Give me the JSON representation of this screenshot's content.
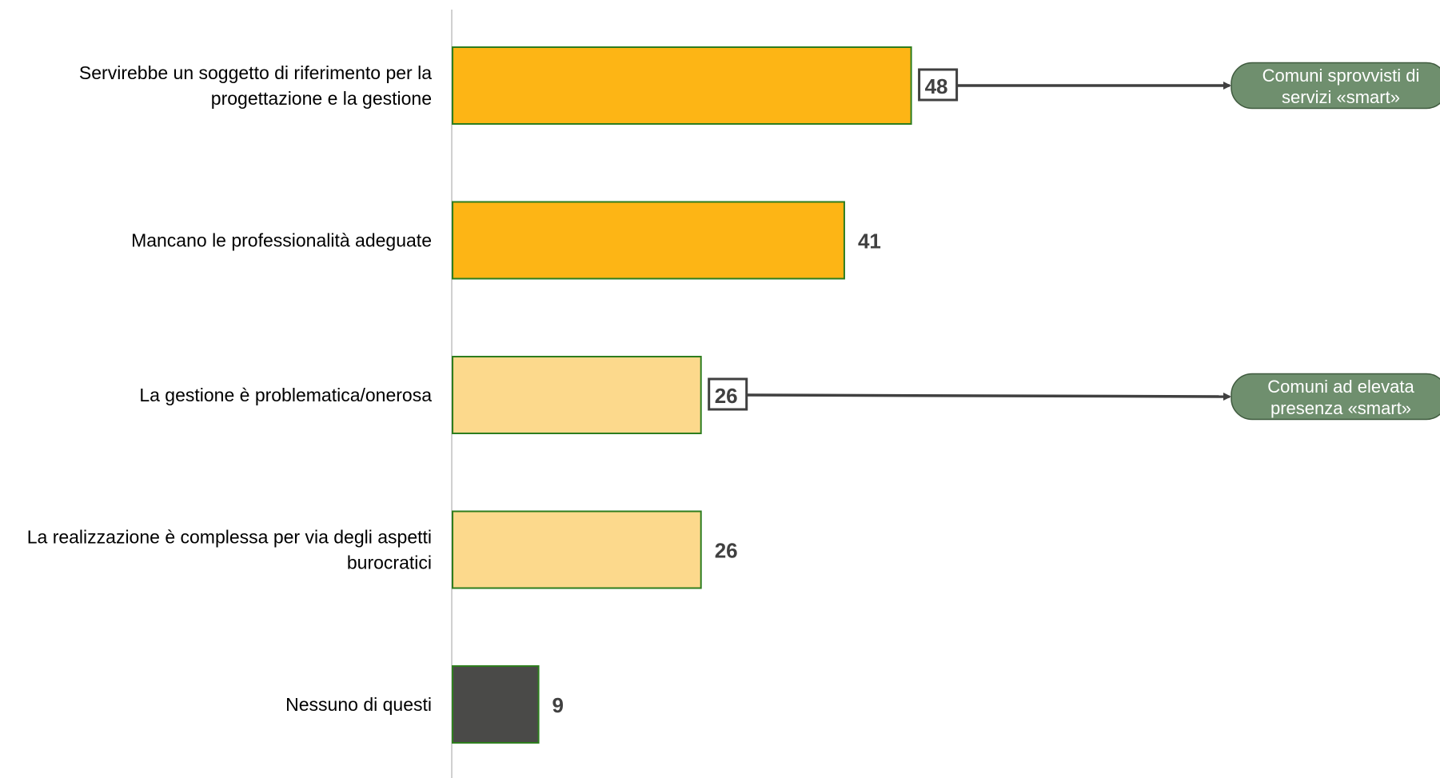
{
  "chart_data": {
    "type": "bar",
    "orientation": "horizontal",
    "categories": [
      [
        "Servirebbe un soggetto di riferimento per la",
        "progettazione e la gestione"
      ],
      [
        "Mancano le professionalità adeguate"
      ],
      [
        "La gestione è problematica/onerosa"
      ],
      [
        "La realizzazione è complessa per via degli aspetti",
        "burocratici"
      ],
      [
        "Nessuno di questi"
      ]
    ],
    "values": [
      48,
      41,
      26,
      26,
      9
    ],
    "bar_colors": [
      "#FDB515",
      "#FDB515",
      "#FCD98C",
      "#FCD98C",
      "#4A4A48"
    ],
    "bar_border_color": "#2E7D1E",
    "value_label_color": "#404040",
    "xlim": [
      0,
      100
    ],
    "grid": false,
    "boxed_values": [
      0,
      2
    ],
    "callouts": [
      {
        "target_index": 0,
        "lines": [
          "Comuni sprovvisti di",
          "servizi «smart»"
        ]
      },
      {
        "target_index": 2,
        "lines": [
          "Comuni ad elevata",
          "presenza «smart»"
        ]
      }
    ],
    "callout_color": "#6F8F6E",
    "arrow_color": "#404040"
  }
}
